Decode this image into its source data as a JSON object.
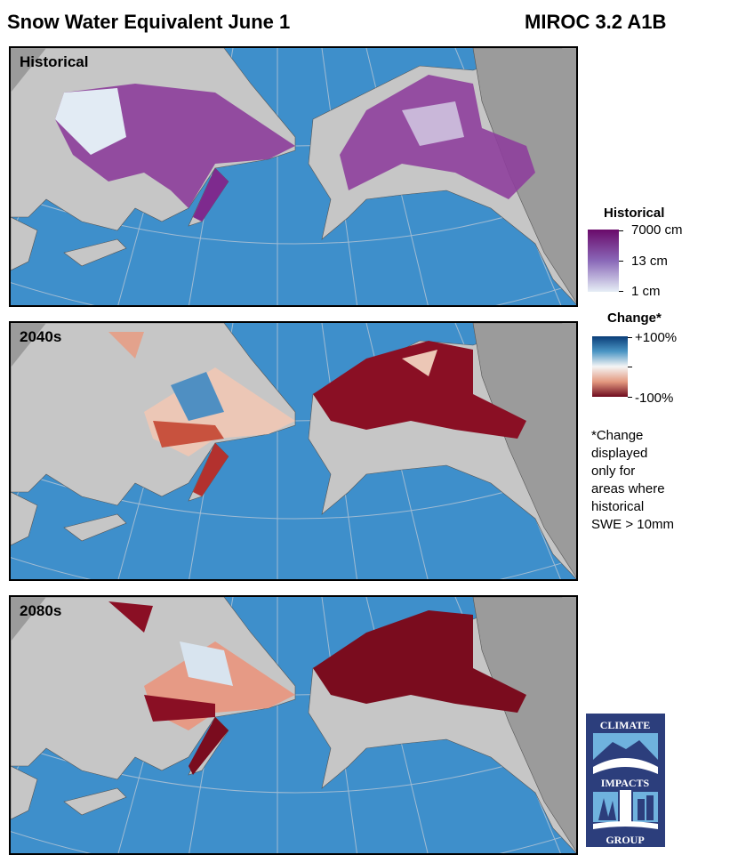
{
  "header": {
    "title": "Snow Water Equivalent June 1",
    "model": "MIROC 3.2 A1B"
  },
  "panels": [
    {
      "label": "Historical"
    },
    {
      "label": "2040s"
    },
    {
      "label": "2080s"
    }
  ],
  "legend": {
    "historical": {
      "title": "Historical",
      "max": "7000 cm",
      "mid": "13 cm",
      "min": "1 cm",
      "colors": [
        "#6a0a6a",
        "#8a68b8",
        "#e6eef6"
      ]
    },
    "change": {
      "title": "Change*",
      "max": "+100%",
      "min": "-100%",
      "colors": [
        "#0a3d78",
        "#f5f5f5",
        "#6e0a1e"
      ]
    },
    "note": [
      "*Change",
      "displayed",
      "only for",
      "areas where",
      "historical",
      "SWE > 10mm"
    ]
  },
  "colors": {
    "ocean": "#3e8fcb",
    "land": "#c6c6c6",
    "outside": "#9b9b9b"
  },
  "logo": {
    "lines": [
      "CLIMATE",
      "IMPACTS",
      "GROUP"
    ]
  }
}
